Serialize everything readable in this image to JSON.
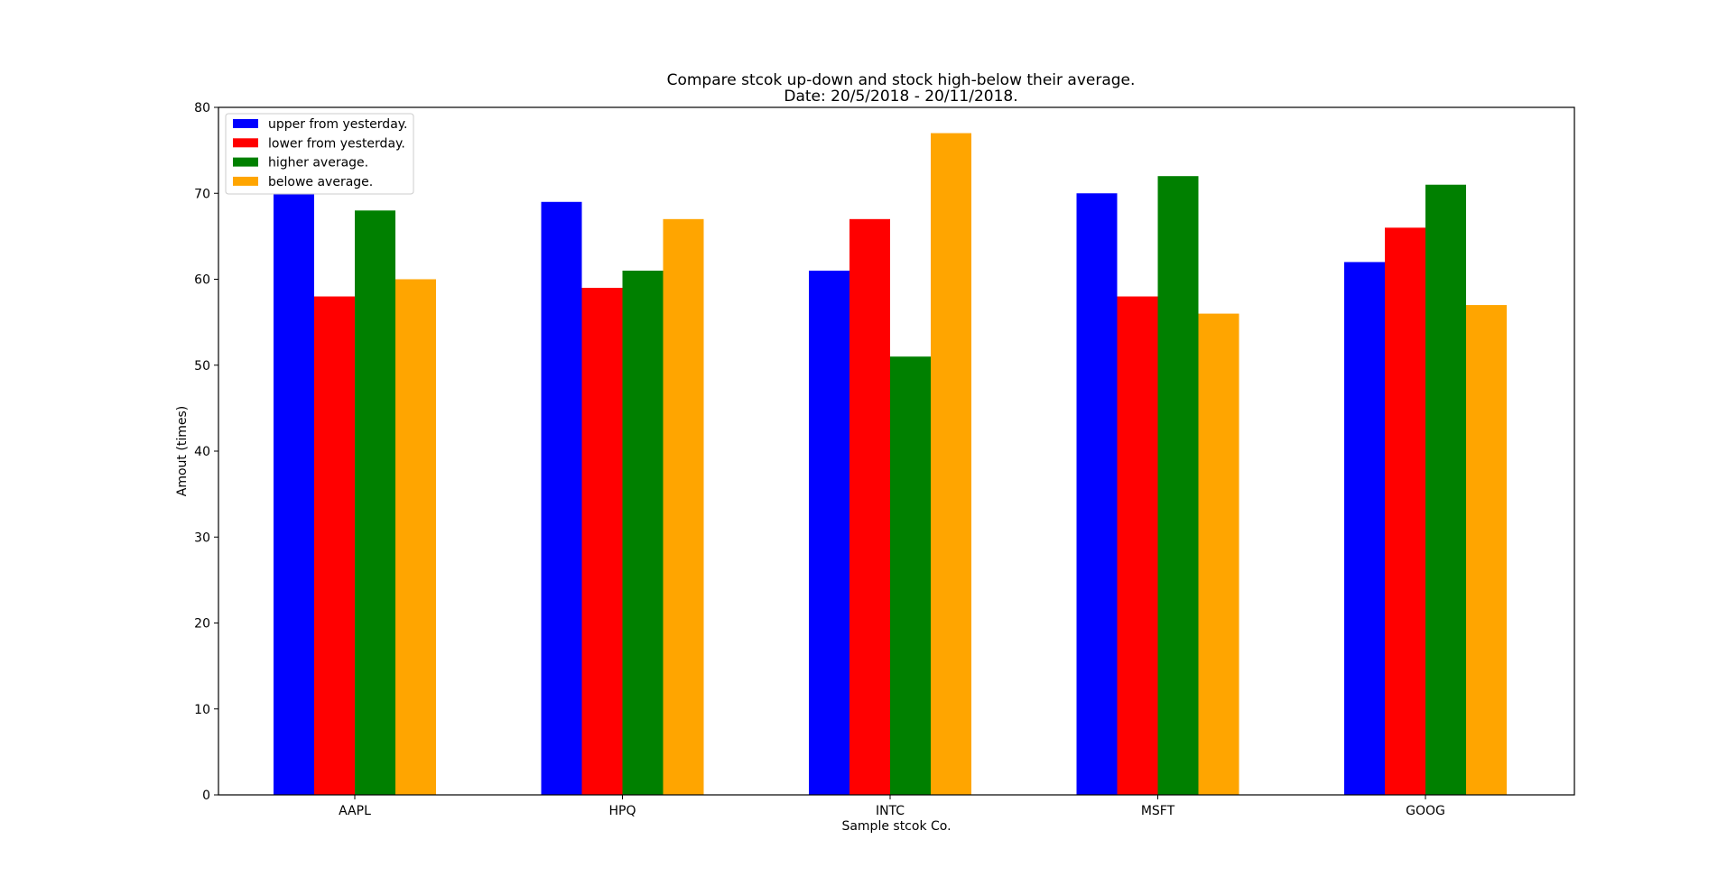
{
  "chart_data": {
    "type": "bar",
    "title": "Compare stcok up-down and stock high-below their average.",
    "subtitle": "Date: 20/5/2018 - 20/11/2018.",
    "xlabel": "Sample stcok Co.",
    "ylabel": "Amout (times)",
    "categories": [
      "AAPL",
      "HPQ",
      "INTC",
      "MSFT",
      "GOOG"
    ],
    "ylim": [
      0,
      80
    ],
    "yticks": [
      0,
      10,
      20,
      30,
      40,
      50,
      60,
      70,
      80
    ],
    "grid": false,
    "legend_position": "top-left",
    "series": [
      {
        "name": "upper from yesterday.",
        "color": "#0000ff",
        "values": [
          70,
          69,
          61,
          70,
          62
        ]
      },
      {
        "name": "lower from yesterday.",
        "color": "#ff0000",
        "values": [
          58,
          59,
          67,
          58,
          66
        ]
      },
      {
        "name": "higher average.",
        "color": "#008000",
        "values": [
          68,
          61,
          51,
          72,
          71
        ]
      },
      {
        "name": "belowe average.",
        "color": "#ffa500",
        "values": [
          60,
          67,
          77,
          56,
          57
        ]
      }
    ]
  }
}
